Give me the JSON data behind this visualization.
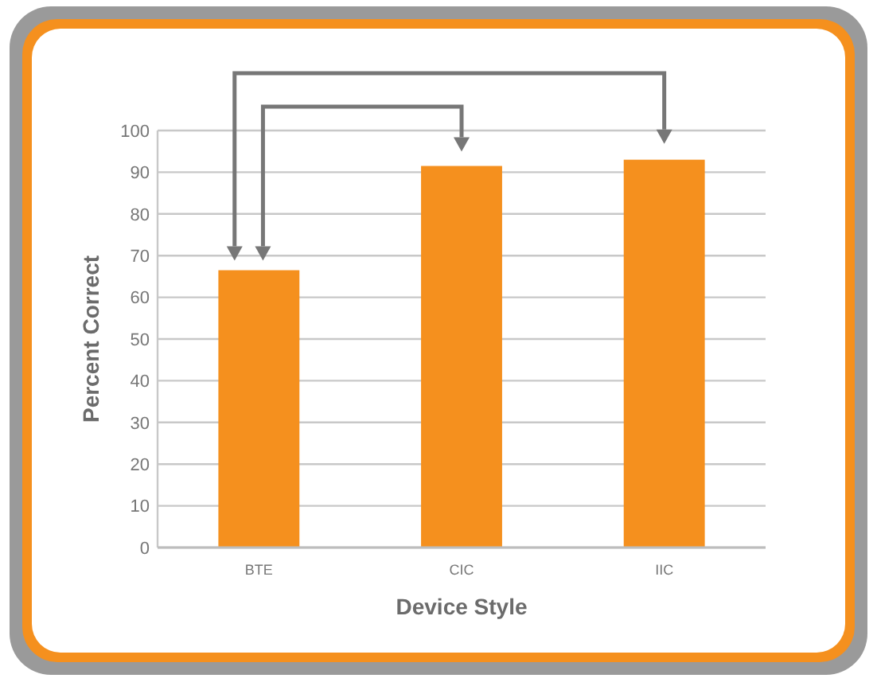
{
  "chart_data": {
    "type": "bar",
    "xlabel": "Device Style",
    "ylabel": "Percent Correct",
    "categories": [
      "BTE",
      "CIC",
      "IIC"
    ],
    "values": [
      66.5,
      91.5,
      93
    ],
    "color": "#f5901e",
    "ylim": [
      0,
      100
    ],
    "yticks": [
      0,
      10,
      20,
      30,
      40,
      50,
      60,
      70,
      80,
      90,
      100
    ],
    "grid": "y"
  }
}
